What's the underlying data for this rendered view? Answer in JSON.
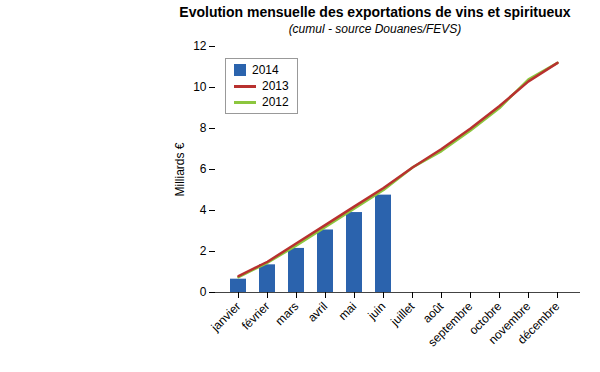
{
  "chart_data": {
    "type": "bar",
    "title": "Evolution mensuelle des exportations de vins et spiritueux",
    "subtitle": "(cumul - source Douanes/FEVS)",
    "y_label": "Milliards €",
    "categories": [
      "janvier",
      "février",
      "mars",
      "avril",
      "mai",
      "juin",
      "juillet",
      "août",
      "septembre",
      "octobre",
      "novembre",
      "décembre"
    ],
    "series": [
      {
        "name": "2014",
        "type": "bar",
        "color": "#2b63ad",
        "values": [
          0.65,
          1.35,
          2.15,
          3.05,
          3.9,
          4.75,
          null,
          null,
          null,
          null,
          null,
          null
        ]
      },
      {
        "name": "2013",
        "type": "line",
        "color": "#b8312f",
        "values": [
          0.8,
          1.5,
          2.4,
          3.3,
          4.2,
          5.1,
          6.1,
          7.0,
          8.0,
          9.1,
          10.3,
          11.2
        ]
      },
      {
        "name": "2012",
        "type": "line",
        "color": "#8cc63e",
        "values": [
          0.75,
          1.45,
          2.3,
          3.2,
          4.1,
          5.0,
          6.1,
          6.9,
          7.9,
          9.0,
          10.4,
          11.2
        ]
      }
    ],
    "ylim": [
      0,
      12
    ],
    "yticks": [
      0,
      2,
      4,
      6,
      8,
      10,
      12
    ],
    "legend": "top-left",
    "grid": false
  }
}
